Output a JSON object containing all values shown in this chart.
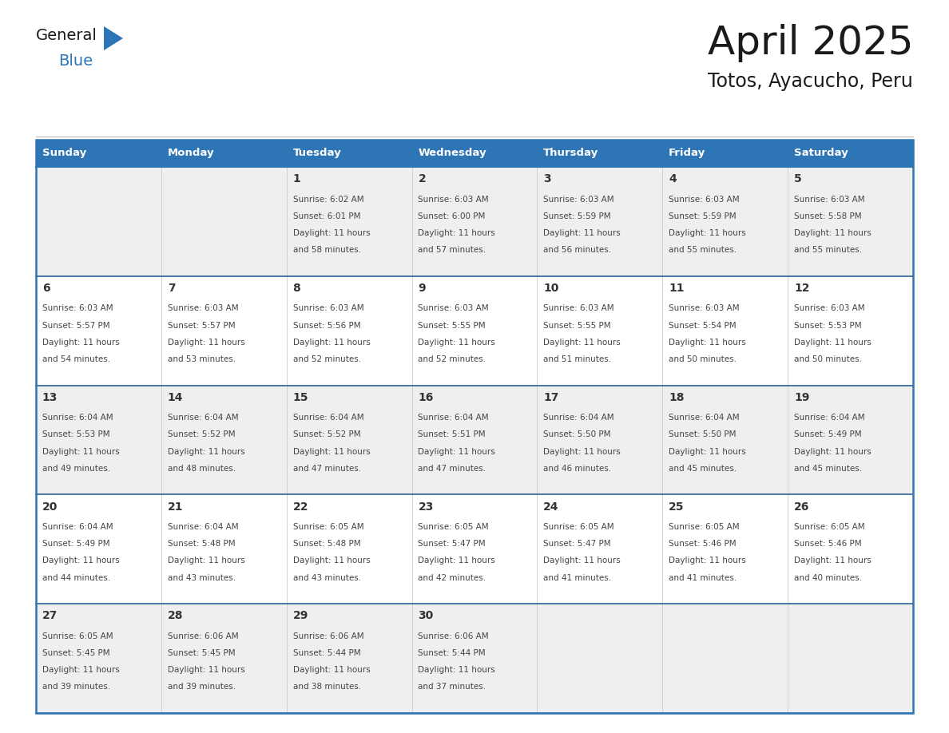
{
  "title": "April 2025",
  "subtitle": "Totos, Ayacucho, Peru",
  "header_bg": "#2E75B6",
  "header_text_color": "#FFFFFF",
  "row_bg_odd": "#EFEFEF",
  "row_bg_even": "#FFFFFF",
  "cell_border_color": "#2E75B6",
  "row_divider_color": "#2E6099",
  "day_headers": [
    "Sunday",
    "Monday",
    "Tuesday",
    "Wednesday",
    "Thursday",
    "Friday",
    "Saturday"
  ],
  "title_color": "#1a1a1a",
  "subtitle_color": "#1a1a1a",
  "date_num_color": "#333333",
  "text_color": "#444444",
  "days": [
    {
      "row": 0,
      "col": 0,
      "date": "",
      "sunrise": "",
      "sunset": "",
      "daylight_h": "",
      "daylight_m": ""
    },
    {
      "row": 0,
      "col": 1,
      "date": "",
      "sunrise": "",
      "sunset": "",
      "daylight_h": "",
      "daylight_m": ""
    },
    {
      "row": 0,
      "col": 2,
      "date": "1",
      "sunrise": "6:02 AM",
      "sunset": "6:01 PM",
      "daylight_h": "11 hours",
      "daylight_m": "58 minutes."
    },
    {
      "row": 0,
      "col": 3,
      "date": "2",
      "sunrise": "6:03 AM",
      "sunset": "6:00 PM",
      "daylight_h": "11 hours",
      "daylight_m": "57 minutes."
    },
    {
      "row": 0,
      "col": 4,
      "date": "3",
      "sunrise": "6:03 AM",
      "sunset": "5:59 PM",
      "daylight_h": "11 hours",
      "daylight_m": "56 minutes."
    },
    {
      "row": 0,
      "col": 5,
      "date": "4",
      "sunrise": "6:03 AM",
      "sunset": "5:59 PM",
      "daylight_h": "11 hours",
      "daylight_m": "55 minutes."
    },
    {
      "row": 0,
      "col": 6,
      "date": "5",
      "sunrise": "6:03 AM",
      "sunset": "5:58 PM",
      "daylight_h": "11 hours",
      "daylight_m": "55 minutes."
    },
    {
      "row": 1,
      "col": 0,
      "date": "6",
      "sunrise": "6:03 AM",
      "sunset": "5:57 PM",
      "daylight_h": "11 hours",
      "daylight_m": "54 minutes."
    },
    {
      "row": 1,
      "col": 1,
      "date": "7",
      "sunrise": "6:03 AM",
      "sunset": "5:57 PM",
      "daylight_h": "11 hours",
      "daylight_m": "53 minutes."
    },
    {
      "row": 1,
      "col": 2,
      "date": "8",
      "sunrise": "6:03 AM",
      "sunset": "5:56 PM",
      "daylight_h": "11 hours",
      "daylight_m": "52 minutes."
    },
    {
      "row": 1,
      "col": 3,
      "date": "9",
      "sunrise": "6:03 AM",
      "sunset": "5:55 PM",
      "daylight_h": "11 hours",
      "daylight_m": "52 minutes."
    },
    {
      "row": 1,
      "col": 4,
      "date": "10",
      "sunrise": "6:03 AM",
      "sunset": "5:55 PM",
      "daylight_h": "11 hours",
      "daylight_m": "51 minutes."
    },
    {
      "row": 1,
      "col": 5,
      "date": "11",
      "sunrise": "6:03 AM",
      "sunset": "5:54 PM",
      "daylight_h": "11 hours",
      "daylight_m": "50 minutes."
    },
    {
      "row": 1,
      "col": 6,
      "date": "12",
      "sunrise": "6:03 AM",
      "sunset": "5:53 PM",
      "daylight_h": "11 hours",
      "daylight_m": "50 minutes."
    },
    {
      "row": 2,
      "col": 0,
      "date": "13",
      "sunrise": "6:04 AM",
      "sunset": "5:53 PM",
      "daylight_h": "11 hours",
      "daylight_m": "49 minutes."
    },
    {
      "row": 2,
      "col": 1,
      "date": "14",
      "sunrise": "6:04 AM",
      "sunset": "5:52 PM",
      "daylight_h": "11 hours",
      "daylight_m": "48 minutes."
    },
    {
      "row": 2,
      "col": 2,
      "date": "15",
      "sunrise": "6:04 AM",
      "sunset": "5:52 PM",
      "daylight_h": "11 hours",
      "daylight_m": "47 minutes."
    },
    {
      "row": 2,
      "col": 3,
      "date": "16",
      "sunrise": "6:04 AM",
      "sunset": "5:51 PM",
      "daylight_h": "11 hours",
      "daylight_m": "47 minutes."
    },
    {
      "row": 2,
      "col": 4,
      "date": "17",
      "sunrise": "6:04 AM",
      "sunset": "5:50 PM",
      "daylight_h": "11 hours",
      "daylight_m": "46 minutes."
    },
    {
      "row": 2,
      "col": 5,
      "date": "18",
      "sunrise": "6:04 AM",
      "sunset": "5:50 PM",
      "daylight_h": "11 hours",
      "daylight_m": "45 minutes."
    },
    {
      "row": 2,
      "col": 6,
      "date": "19",
      "sunrise": "6:04 AM",
      "sunset": "5:49 PM",
      "daylight_h": "11 hours",
      "daylight_m": "45 minutes."
    },
    {
      "row": 3,
      "col": 0,
      "date": "20",
      "sunrise": "6:04 AM",
      "sunset": "5:49 PM",
      "daylight_h": "11 hours",
      "daylight_m": "44 minutes."
    },
    {
      "row": 3,
      "col": 1,
      "date": "21",
      "sunrise": "6:04 AM",
      "sunset": "5:48 PM",
      "daylight_h": "11 hours",
      "daylight_m": "43 minutes."
    },
    {
      "row": 3,
      "col": 2,
      "date": "22",
      "sunrise": "6:05 AM",
      "sunset": "5:48 PM",
      "daylight_h": "11 hours",
      "daylight_m": "43 minutes."
    },
    {
      "row": 3,
      "col": 3,
      "date": "23",
      "sunrise": "6:05 AM",
      "sunset": "5:47 PM",
      "daylight_h": "11 hours",
      "daylight_m": "42 minutes."
    },
    {
      "row": 3,
      "col": 4,
      "date": "24",
      "sunrise": "6:05 AM",
      "sunset": "5:47 PM",
      "daylight_h": "11 hours",
      "daylight_m": "41 minutes."
    },
    {
      "row": 3,
      "col": 5,
      "date": "25",
      "sunrise": "6:05 AM",
      "sunset": "5:46 PM",
      "daylight_h": "11 hours",
      "daylight_m": "41 minutes."
    },
    {
      "row": 3,
      "col": 6,
      "date": "26",
      "sunrise": "6:05 AM",
      "sunset": "5:46 PM",
      "daylight_h": "11 hours",
      "daylight_m": "40 minutes."
    },
    {
      "row": 4,
      "col": 0,
      "date": "27",
      "sunrise": "6:05 AM",
      "sunset": "5:45 PM",
      "daylight_h": "11 hours",
      "daylight_m": "39 minutes."
    },
    {
      "row": 4,
      "col": 1,
      "date": "28",
      "sunrise": "6:06 AM",
      "sunset": "5:45 PM",
      "daylight_h": "11 hours",
      "daylight_m": "39 minutes."
    },
    {
      "row": 4,
      "col": 2,
      "date": "29",
      "sunrise": "6:06 AM",
      "sunset": "5:44 PM",
      "daylight_h": "11 hours",
      "daylight_m": "38 minutes."
    },
    {
      "row": 4,
      "col": 3,
      "date": "30",
      "sunrise": "6:06 AM",
      "sunset": "5:44 PM",
      "daylight_h": "11 hours",
      "daylight_m": "37 minutes."
    },
    {
      "row": 4,
      "col": 4,
      "date": "",
      "sunrise": "",
      "sunset": "",
      "daylight_h": "",
      "daylight_m": ""
    },
    {
      "row": 4,
      "col": 5,
      "date": "",
      "sunrise": "",
      "sunset": "",
      "daylight_h": "",
      "daylight_m": ""
    },
    {
      "row": 4,
      "col": 6,
      "date": "",
      "sunrise": "",
      "sunset": "",
      "daylight_h": "",
      "daylight_m": ""
    }
  ],
  "num_rows": 5,
  "num_cols": 7,
  "logo_triangle_color": "#2E75B6"
}
